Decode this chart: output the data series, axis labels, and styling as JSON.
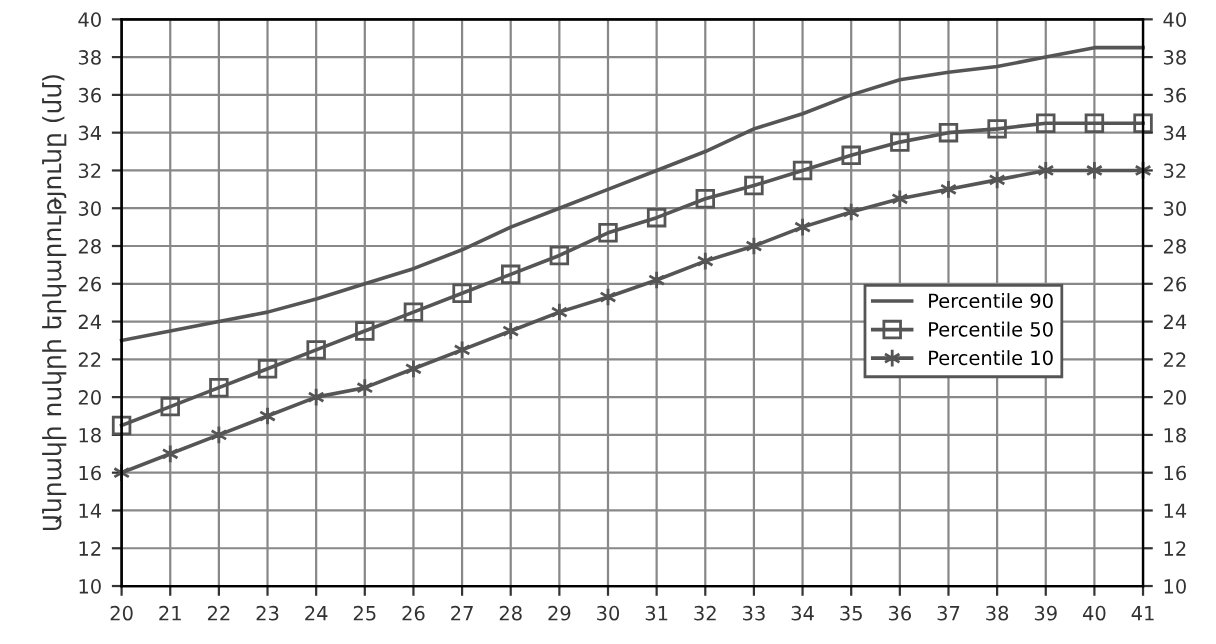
{
  "chart_data": {
    "type": "line",
    "ylabel": "Անրակի ոսկրի երկարությունը (մմ)",
    "x": [
      20,
      21,
      22,
      23,
      24,
      25,
      26,
      27,
      28,
      29,
      30,
      31,
      32,
      33,
      34,
      35,
      36,
      37,
      38,
      39,
      40,
      41
    ],
    "series": [
      {
        "name": "Percentile 90",
        "color": "#555555",
        "marker": "none",
        "values": [
          23,
          23.5,
          24,
          24.5,
          25.2,
          26,
          26.8,
          27.8,
          29,
          30,
          31,
          32,
          33,
          34.2,
          35,
          36,
          36.8,
          37.2,
          37.5,
          38,
          38.5,
          38.5
        ]
      },
      {
        "name": "Percentile 50",
        "color": "#555555",
        "marker": "square",
        "values": [
          18.5,
          19.5,
          20.5,
          21.5,
          22.5,
          23.5,
          24.5,
          25.5,
          26.5,
          27.5,
          28.7,
          29.5,
          30.5,
          31.2,
          32,
          32.8,
          33.5,
          34,
          34.2,
          34.5,
          34.5,
          34.5
        ]
      },
      {
        "name": "Percentile 10",
        "color": "#555555",
        "marker": "cross",
        "values": [
          16,
          17,
          18,
          19,
          20,
          20.5,
          21.5,
          22.5,
          23.5,
          24.5,
          25.3,
          26.2,
          27.2,
          28,
          29,
          29.8,
          30.5,
          31,
          31.5,
          32,
          32,
          32
        ]
      }
    ],
    "xlim": [
      20,
      41
    ],
    "xticks": [
      20,
      21,
      22,
      23,
      24,
      25,
      26,
      27,
      28,
      29,
      30,
      31,
      32,
      33,
      34,
      35,
      36,
      37,
      38,
      39,
      40,
      41
    ],
    "ylim": [
      10,
      40
    ],
    "yticks": [
      10,
      12,
      14,
      16,
      18,
      20,
      22,
      24,
      26,
      28,
      30,
      32,
      34,
      36,
      38,
      40
    ],
    "y2lim": [
      10,
      40
    ],
    "y2ticks": [
      10,
      12,
      14,
      16,
      18,
      20,
      22,
      24,
      26,
      28,
      30,
      32,
      34,
      36,
      38,
      40
    ],
    "grid": true,
    "legend": "right",
    "line_style": "solid"
  }
}
